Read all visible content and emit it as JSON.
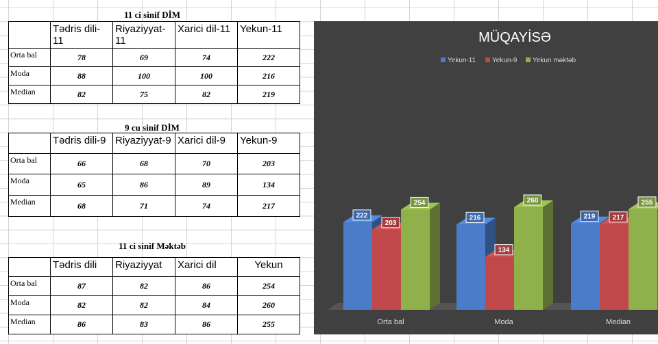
{
  "tables": [
    {
      "title": "11 ci sinif DİM",
      "headers": [
        "Tədris dili-11",
        "Riyaziyyat-11",
        "Xarici dil-11",
        "Yekun-11"
      ],
      "rows": [
        {
          "label": "Orta bal",
          "values": [
            "78",
            "69",
            "74",
            "222"
          ]
        },
        {
          "label": "Moda",
          "values": [
            "88",
            "100",
            "100",
            "216"
          ]
        },
        {
          "label": "Median",
          "values": [
            "82",
            "75",
            "82",
            "219"
          ]
        }
      ]
    },
    {
      "title": "9 cu sinif DİM",
      "headers": [
        "Tədris dili-9",
        "Riyaziyyat-9",
        "Xarici dil-9",
        "Yekun-9"
      ],
      "rows": [
        {
          "label": "Orta bal",
          "values": [
            "66",
            "68",
            "70",
            "203"
          ]
        },
        {
          "label": "Moda",
          "values": [
            "65",
            "86",
            "89",
            "134"
          ]
        },
        {
          "label": "Median",
          "values": [
            "68",
            "71",
            "74",
            "217"
          ]
        }
      ]
    },
    {
      "title": "11 ci sinif Məktəb",
      "headers": [
        "Tədris dili",
        "Riyaziyyat",
        "Xarici dil",
        "Yekun"
      ],
      "rows": [
        {
          "label": "Orta bal",
          "values": [
            "87",
            "82",
            "86",
            "254"
          ]
        },
        {
          "label": "Moda",
          "values": [
            "82",
            "82",
            "84",
            "260"
          ]
        },
        {
          "label": "Median",
          "values": [
            "86",
            "83",
            "86",
            "255"
          ]
        }
      ]
    }
  ],
  "chart_data": {
    "type": "bar",
    "title": "MÜQAYİSƏ",
    "categories": [
      "Orta bal",
      "Moda",
      "Median"
    ],
    "series": [
      {
        "name": "Yekun-11",
        "values": [
          222,
          216,
          219
        ],
        "color": "#4a7cc9"
      },
      {
        "name": "Yekun-9",
        "values": [
          203,
          134,
          217
        ],
        "color": "#c0474a"
      },
      {
        "name": "Yekun məktəb",
        "values": [
          254,
          260,
          255
        ],
        "color": "#8fb04a"
      }
    ],
    "legend": "top",
    "grid": false,
    "data_labels": true,
    "ylim": [
      0,
      300
    ],
    "background": "#404040"
  }
}
